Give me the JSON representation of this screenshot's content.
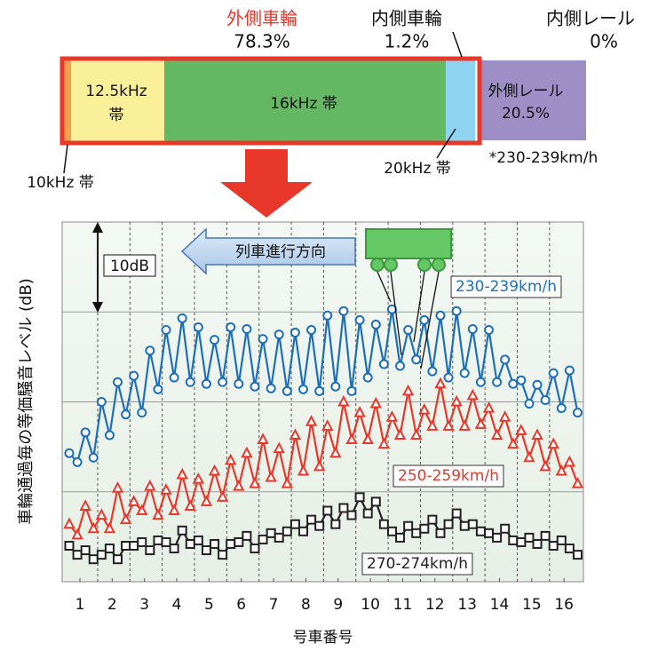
{
  "diagram": {
    "outer_wheel": "外側車輪",
    "outer_wheel_share": "78.3%",
    "inner_wheel": "内側車輪",
    "inner_wheel_share": "1.2%",
    "inner_rail": "内側レール",
    "inner_rail_share": "0%",
    "band_125_a": "12.5kHz",
    "band_125_b": "帯",
    "band_16": "16kHz 帯",
    "outer_rail": "外側レール",
    "outer_rail_share": "20.5%",
    "speed_note": "*230-239km/h",
    "band_10": "10kHz 帯",
    "band_20": "20kHz 帯"
  },
  "chart_data": {
    "type": "line",
    "xlabel": "号車番号",
    "ylabel": "車輪通過毎の等価騒音レベル (dB)",
    "annotations": {
      "scale": "10dB",
      "direction": "列車進行方向"
    },
    "xlim": [
      0.45,
      16.6
    ],
    "xticks": [
      1,
      2,
      3,
      4,
      5,
      6,
      7,
      8,
      9,
      10,
      11,
      12,
      13,
      14,
      15,
      16
    ],
    "xgrid": [
      1.55,
      2.55,
      3.55,
      4.55,
      5.55,
      6.55,
      7.55,
      8.55,
      9.55,
      10.55,
      11.55,
      12.55,
      13.55,
      14.55,
      15.55
    ],
    "ylim": [
      0,
      40
    ],
    "yticks": [
      10,
      20,
      30
    ],
    "grid": true,
    "x": [
      0.67,
      0.92,
      1.17,
      1.42,
      1.67,
      1.92,
      2.17,
      2.42,
      2.67,
      2.92,
      3.17,
      3.42,
      3.67,
      3.92,
      4.17,
      4.42,
      4.67,
      4.92,
      5.17,
      5.42,
      5.67,
      5.92,
      6.17,
      6.42,
      6.67,
      6.92,
      7.17,
      7.42,
      7.67,
      7.92,
      8.17,
      8.42,
      8.67,
      8.92,
      9.17,
      9.42,
      9.67,
      9.92,
      10.17,
      10.42,
      10.67,
      10.92,
      11.17,
      11.42,
      11.67,
      11.92,
      12.17,
      12.42,
      12.67,
      12.92,
      13.17,
      13.42,
      13.67,
      13.92,
      14.17,
      14.42,
      14.67,
      14.92,
      15.17,
      15.42,
      15.67,
      15.92,
      16.17,
      16.42
    ],
    "series": [
      {
        "name": "230-239km/h",
        "color": "#1f6fb8",
        "marker": "circle",
        "values": [
          14.3,
          13.3,
          16.6,
          13.8,
          20.0,
          16.3,
          22.2,
          18.6,
          22.9,
          18.8,
          25.7,
          21.4,
          28.0,
          22.7,
          29.3,
          22.2,
          28.3,
          22.0,
          26.9,
          22.2,
          28.3,
          22.0,
          28.1,
          21.7,
          27.0,
          21.5,
          27.5,
          21.2,
          27.7,
          21.4,
          28.0,
          21.2,
          29.6,
          21.7,
          30.1,
          21.2,
          29.1,
          22.7,
          28.6,
          24.2,
          30.3,
          24.0,
          28.0,
          24.7,
          29.1,
          23.4,
          29.6,
          22.7,
          30.1,
          23.2,
          28.1,
          22.2,
          28.0,
          22.2,
          24.7,
          22.0,
          22.4,
          19.8,
          21.9,
          20.2,
          23.2,
          19.3,
          23.5,
          18.8
        ]
      },
      {
        "name": "250-259km/h",
        "color": "#e8382c",
        "marker": "triangle",
        "values": [
          6.4,
          5.2,
          8.4,
          5.9,
          7.4,
          5.9,
          10.4,
          6.9,
          8.9,
          7.9,
          10.6,
          7.4,
          10.2,
          7.9,
          11.9,
          8.4,
          11.4,
          8.9,
          12.3,
          9.4,
          13.5,
          10.6,
          14.3,
          10.9,
          15.8,
          11.6,
          14.8,
          10.9,
          16.3,
          12.3,
          17.8,
          12.8,
          17.3,
          14.3,
          20.0,
          15.8,
          18.8,
          15.8,
          19.8,
          15.3,
          18.3,
          16.3,
          21.2,
          16.3,
          19.1,
          17.3,
          22.0,
          17.3,
          20.0,
          17.3,
          20.7,
          17.5,
          19.3,
          16.3,
          18.3,
          15.3,
          16.8,
          13.8,
          16.3,
          12.8,
          15.3,
          12.3,
          13.3,
          10.9
        ]
      },
      {
        "name": "270-274km/h",
        "color": "#222222",
        "marker": "square",
        "values": [
          4.0,
          3.0,
          3.5,
          2.5,
          3.0,
          3.7,
          2.5,
          4.0,
          4.0,
          4.4,
          3.5,
          4.6,
          4.4,
          3.7,
          5.7,
          4.2,
          4.6,
          3.5,
          4.2,
          3.0,
          4.2,
          4.4,
          5.1,
          3.7,
          4.7,
          5.4,
          4.9,
          5.6,
          6.4,
          5.6,
          6.9,
          6.2,
          7.9,
          6.4,
          8.2,
          7.4,
          9.4,
          7.6,
          8.9,
          6.4,
          5.6,
          4.9,
          6.2,
          5.4,
          5.9,
          6.9,
          5.4,
          6.4,
          7.6,
          6.2,
          6.4,
          5.6,
          5.4,
          4.9,
          5.9,
          4.6,
          4.4,
          4.9,
          4.2,
          5.1,
          4.0,
          4.6,
          3.7,
          3.0
        ]
      }
    ]
  }
}
